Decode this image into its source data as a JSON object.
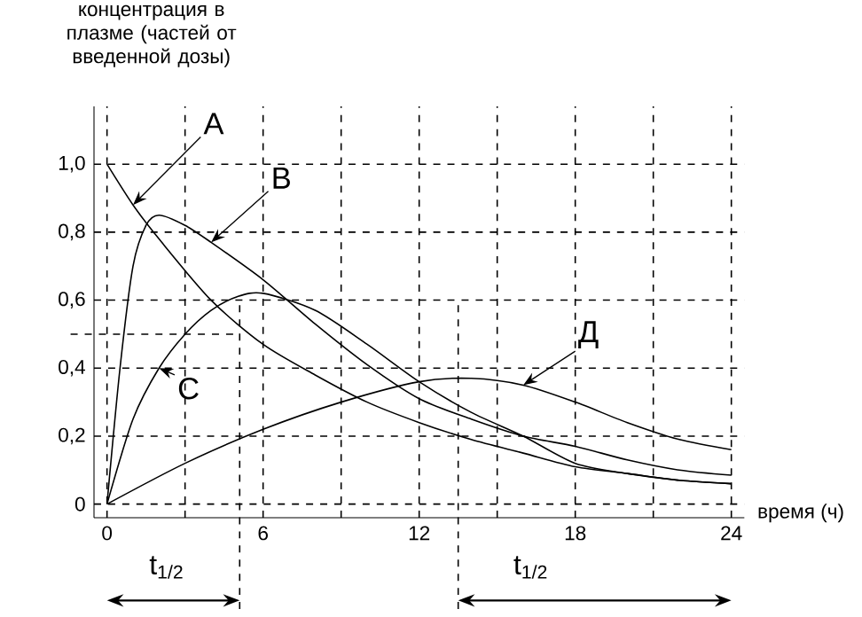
{
  "chart_data": {
    "type": "line",
    "ylabel": "концентрация в плазме (частей от введенной дозы)",
    "xlabel": "время (ч)",
    "xlim": [
      -0.5,
      24.5
    ],
    "ylim": [
      -0.04,
      1.17
    ],
    "xticks": [
      0,
      {
        "value": 3,
        "label": null
      },
      6,
      {
        "value": 9,
        "label": null
      },
      12,
      {
        "value": 15,
        "label": null
      },
      18,
      {
        "value": 21,
        "label": null
      },
      24
    ],
    "yticks": [
      0,
      {
        "value": 0.2,
        "label": "0,2"
      },
      {
        "value": 0.4,
        "label": "0,4"
      },
      {
        "value": 0.6,
        "label": "0,6"
      },
      {
        "value": 0.8,
        "label": "0,8"
      },
      {
        "value": 1.0,
        "label": "1,0"
      }
    ],
    "grid": true,
    "line_style": "solid",
    "series": [
      {
        "name": "А",
        "color": "#000000",
        "x": [
          0,
          1,
          2,
          4,
          6,
          8,
          10,
          12,
          14,
          16,
          18,
          20,
          22,
          24
        ],
        "values": [
          1.0,
          0.88,
          0.78,
          0.6,
          0.47,
          0.38,
          0.3,
          0.24,
          0.19,
          0.15,
          0.11,
          0.09,
          0.07,
          0.06
        ]
      },
      {
        "name": "В",
        "color": "#000000",
        "x": [
          0,
          0.5,
          1,
          1.5,
          2,
          3,
          4,
          6,
          8,
          10,
          12,
          14,
          16,
          18,
          20,
          22,
          24
        ],
        "values": [
          0,
          0.4,
          0.7,
          0.82,
          0.85,
          0.82,
          0.77,
          0.66,
          0.53,
          0.41,
          0.31,
          0.25,
          0.2,
          0.17,
          0.13,
          0.1,
          0.085
        ]
      },
      {
        "name": "С",
        "color": "#000000",
        "x": [
          0,
          1,
          2,
          3,
          4,
          5,
          6,
          8,
          10,
          12,
          14,
          16,
          18,
          20,
          22,
          24
        ],
        "values": [
          0,
          0.25,
          0.4,
          0.5,
          0.57,
          0.61,
          0.62,
          0.57,
          0.47,
          0.36,
          0.27,
          0.2,
          0.12,
          0.09,
          0.07,
          0.06
        ]
      },
      {
        "name": "Д",
        "color": "#000000",
        "x": [
          0,
          3,
          6,
          9,
          12,
          14,
          16,
          18,
          20,
          22,
          24
        ],
        "values": [
          0,
          0.12,
          0.22,
          0.3,
          0.36,
          0.37,
          0.35,
          0.3,
          0.24,
          0.19,
          0.16
        ]
      }
    ],
    "ref_lines": [
      {
        "axis": "y",
        "value": 0.5,
        "line_style": "dashed"
      },
      {
        "axis": "x",
        "value": 5.1,
        "label": "t$_{1/2}$",
        "line_style": "dashed"
      },
      {
        "axis": "x",
        "value": 13.5,
        "label": "t$_{1/2}$",
        "line_style": "dashed"
      }
    ]
  }
}
